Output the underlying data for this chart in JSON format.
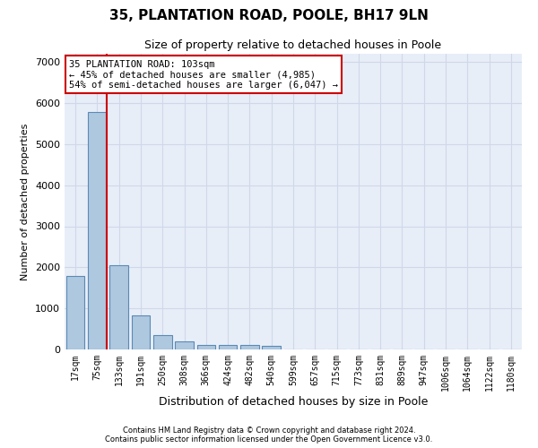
{
  "title": "35, PLANTATION ROAD, POOLE, BH17 9LN",
  "subtitle": "Size of property relative to detached houses in Poole",
  "xlabel": "Distribution of detached houses by size in Poole",
  "ylabel": "Number of detached properties",
  "bar_labels": [
    "17sqm",
    "75sqm",
    "133sqm",
    "191sqm",
    "250sqm",
    "308sqm",
    "366sqm",
    "424sqm",
    "482sqm",
    "540sqm",
    "599sqm",
    "657sqm",
    "715sqm",
    "773sqm",
    "831sqm",
    "889sqm",
    "947sqm",
    "1006sqm",
    "1064sqm",
    "1122sqm",
    "1180sqm"
  ],
  "bar_values": [
    1780,
    5780,
    2060,
    820,
    340,
    190,
    120,
    110,
    100,
    80,
    0,
    0,
    0,
    0,
    0,
    0,
    0,
    0,
    0,
    0,
    0
  ],
  "bar_color": "#aec8e0",
  "bar_edge_color": "#5a8ab5",
  "property_line_x": 1.45,
  "annotation_text_line1": "35 PLANTATION ROAD: 103sqm",
  "annotation_text_line2": "← 45% of detached houses are smaller (4,985)",
  "annotation_text_line3": "54% of semi-detached houses are larger (6,047) →",
  "red_line_color": "#cc0000",
  "annotation_box_color": "#ffffff",
  "annotation_box_edge": "#cc0000",
  "ylim": [
    0,
    7200
  ],
  "yticks": [
    0,
    1000,
    2000,
    3000,
    4000,
    5000,
    6000,
    7000
  ],
  "grid_color": "#d0d8e8",
  "bg_color": "#e8eef8",
  "footer_line1": "Contains HM Land Registry data © Crown copyright and database right 2024.",
  "footer_line2": "Contains public sector information licensed under the Open Government Licence v3.0."
}
